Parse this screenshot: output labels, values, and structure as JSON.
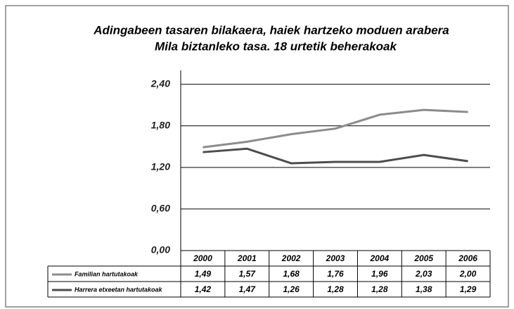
{
  "chart_data": {
    "type": "line",
    "title": "Adingabeen tasaren bilakaera, haiek hartzeko moduen arabera",
    "subtitle": "Mila biztanleko tasa. 18 urtetik beherakoak",
    "categories": [
      "2000",
      "2001",
      "2002",
      "2003",
      "2004",
      "2005",
      "2006"
    ],
    "series": [
      {
        "name": "Familian hartutakoak",
        "color": "#8c8c8c",
        "values": [
          1.49,
          1.57,
          1.68,
          1.76,
          1.96,
          2.03,
          2.0
        ],
        "value_labels": [
          "1,49",
          "1,57",
          "1,68",
          "1,76",
          "1,96",
          "2,03",
          "2,00"
        ]
      },
      {
        "name": "Harrera etxeetan hartutakoak",
        "color": "#4d4d4d",
        "values": [
          1.42,
          1.47,
          1.26,
          1.28,
          1.28,
          1.38,
          1.29
        ],
        "value_labels": [
          "1,42",
          "1,47",
          "1,26",
          "1,28",
          "1,28",
          "1,38",
          "1,29"
        ]
      }
    ],
    "ylim": [
      0,
      2.6
    ],
    "yticks": [
      {
        "value": 0,
        "label": "0,00"
      },
      {
        "value": 0.6,
        "label": "0,60"
      },
      {
        "value": 1.2,
        "label": "1,20"
      },
      {
        "value": 1.8,
        "label": "1,80"
      },
      {
        "value": 2.4,
        "label": "2,40"
      }
    ],
    "grid": true
  }
}
